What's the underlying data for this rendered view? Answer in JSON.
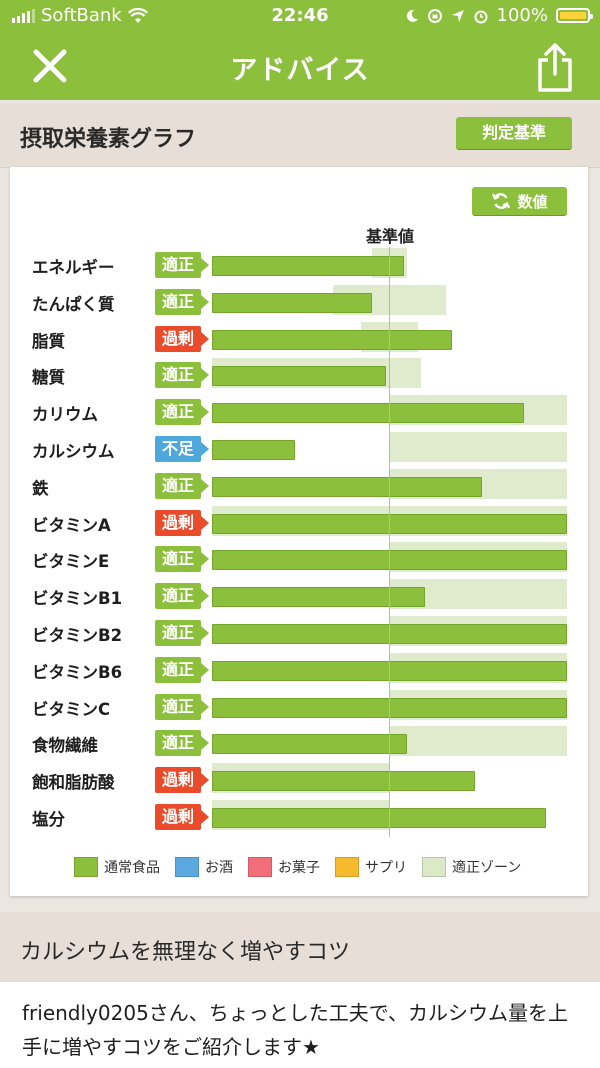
{
  "status_bar": {
    "carrier": "SoftBank",
    "time": "22:46",
    "battery": "100%"
  },
  "header": {
    "title": "アドバイス",
    "close_icon": "close-icon",
    "share_icon": "share-icon"
  },
  "section1": {
    "title": "摂取栄養素グラフ",
    "judge_button": "判定基準"
  },
  "chart_controls": {
    "number_button": "数値",
    "reference_label": "基準値"
  },
  "colors": {
    "accent": "#8cbf3c",
    "zone": "#dce9c7",
    "over": "#ea4b2a",
    "short": "#4ea8dc"
  },
  "chart_data": {
    "type": "bar",
    "orientation": "horizontal",
    "reference_label": "基準値",
    "categories": [
      "エネルギー",
      "たんぱく質",
      "脂質",
      "糖質",
      "カリウム",
      "カルシウム",
      "鉄",
      "ビタミンA",
      "ビタミンE",
      "ビタミンB1",
      "ビタミンB2",
      "ビタミンB6",
      "ビタミンC",
      "食物繊維",
      "飽和脂肪酸",
      "塩分"
    ],
    "status": [
      "適正",
      "適正",
      "過剰",
      "適正",
      "適正",
      "不足",
      "適正",
      "過剰",
      "適正",
      "適正",
      "適正",
      "適正",
      "適正",
      "適正",
      "過剰",
      "過剰"
    ],
    "series": [
      {
        "name": "通常食品",
        "values": [
          108,
          90,
          135,
          98,
          176,
          47,
          152,
          200,
          200,
          120,
          200,
          200,
          200,
          110,
          148,
          188
        ]
      }
    ],
    "zones": [
      [
        90,
        110
      ],
      [
        68,
        132
      ],
      [
        84,
        116
      ],
      [
        0,
        118
      ],
      [
        100,
        200
      ],
      [
        100,
        200
      ],
      [
        100,
        200
      ],
      [
        0,
        200
      ],
      [
        100,
        200
      ],
      [
        100,
        200
      ],
      [
        100,
        200
      ],
      [
        100,
        200
      ],
      [
        100,
        200
      ],
      [
        100,
        200
      ],
      [
        0,
        100
      ],
      [
        0,
        100
      ]
    ],
    "reference": 100,
    "xlim": [
      0,
      200
    ]
  },
  "legend": [
    {
      "label": "通常食品",
      "color": "#8cbf3c"
    },
    {
      "label": "お酒",
      "color": "#5aa9e0"
    },
    {
      "label": "お菓子",
      "color": "#f26d7a"
    },
    {
      "label": "サプリ",
      "color": "#f7b92e"
    },
    {
      "label": "適正ゾーン",
      "color": "#dce9c7"
    }
  ],
  "section2": {
    "title": "カルシウムを無理なく増やすコツ",
    "body": "friendly0205さん、ちょっとした工夫で、カルシウム量を上手に増やすコツをご紹介します★"
  }
}
